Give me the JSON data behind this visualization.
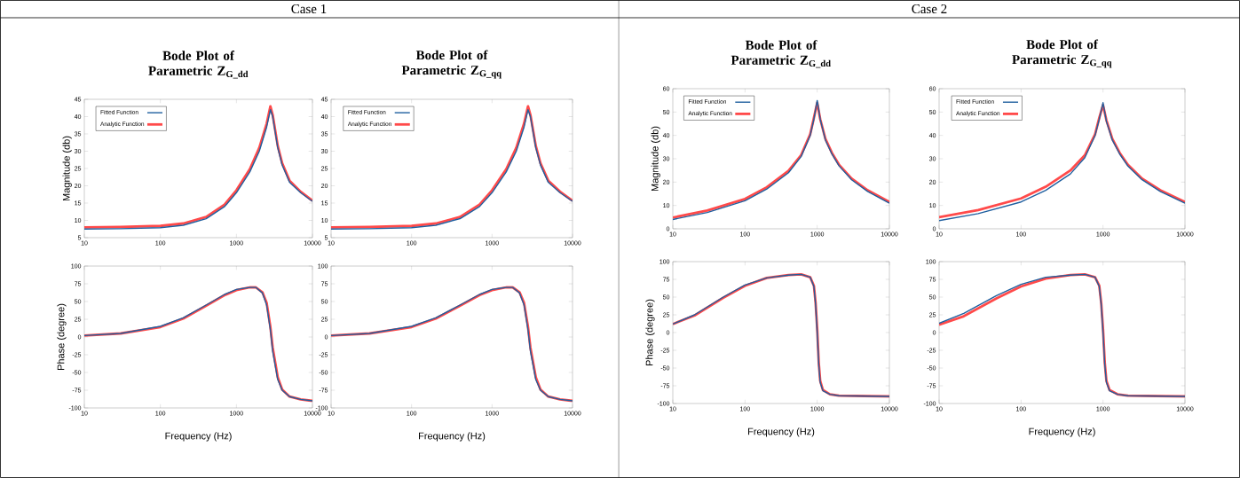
{
  "chart_data": [
    {
      "type": "line",
      "title": "Bode Plot of Parametric Z$_{G_dd}$",
      "ylabel": "Magnitude (db)",
      "annotations": [
        "Case 1"
      ],
      "log": "x",
      "legend": "top left",
      "xlim": [
        10,
        10000
      ],
      "ylim": [
        5,
        45
      ],
      "xticks": [
        10,
        100,
        1000,
        10000
      ],
      "yticks": [
        5,
        10,
        15,
        20,
        25,
        30,
        35,
        40,
        45
      ],
      "x": [
        10,
        30,
        100,
        200,
        400,
        700,
        1000,
        1500,
        2000,
        2500,
        2800,
        3000,
        3500,
        4000,
        5000,
        7000,
        10000
      ],
      "series": [
        {
          "name": "Fitted Function",
          "color": "#1f5f9f",
          "values": [
            7.5,
            7.6,
            7.9,
            8.6,
            10.5,
            14,
            18,
            24,
            30,
            37,
            42,
            40,
            31,
            26,
            21,
            18,
            15.5
          ]
        },
        {
          "name": "Analytic  Function",
          "color": "#ff4a4a",
          "values": [
            8,
            8.1,
            8.4,
            9.1,
            11,
            14.6,
            18.7,
            24.8,
            31,
            38,
            43,
            40.5,
            31.5,
            26.5,
            21.5,
            18.3,
            15.7
          ]
        }
      ]
    },
    {
      "type": "line",
      "title": "Bode Plot of Parametric  Z$_{G_qq}$",
      "log": "x",
      "legend": "top left",
      "xlim": [
        10,
        10000
      ],
      "ylim": [
        5,
        45
      ],
      "xticks": [
        10,
        100,
        1000,
        10000
      ],
      "yticks": [
        5,
        10,
        15,
        20,
        25,
        30,
        35,
        40,
        45
      ],
      "x": [
        10,
        30,
        100,
        200,
        400,
        700,
        1000,
        1500,
        2000,
        2500,
        2800,
        3000,
        3500,
        4000,
        5000,
        7000,
        10000
      ],
      "series": [
        {
          "name": "Fitted Function",
          "color": "#1f5f9f",
          "values": [
            7.5,
            7.6,
            7.9,
            8.6,
            10.5,
            14,
            18,
            24,
            30,
            37,
            42,
            40,
            31,
            26,
            21,
            18,
            15.5
          ]
        },
        {
          "name": "Analytic  Function",
          "color": "#ff4a4a",
          "values": [
            8,
            8.1,
            8.4,
            9.1,
            11,
            14.6,
            18.7,
            24.8,
            31,
            38,
            43,
            40.5,
            31.5,
            26.5,
            21.5,
            18.3,
            15.7
          ]
        }
      ]
    },
    {
      "type": "line",
      "xlabel": "Frequency (Hz)",
      "ylabel": "Phase (degree)",
      "log": "x",
      "xlim": [
        10,
        10000
      ],
      "ylim": [
        -100,
        100
      ],
      "xticks": [
        10,
        100,
        1000,
        10000
      ],
      "yticks": [
        -100,
        -75,
        -50,
        -25,
        0,
        25,
        50,
        75,
        100
      ],
      "x": [
        10,
        30,
        100,
        200,
        400,
        700,
        1000,
        1500,
        1800,
        2200,
        2500,
        2800,
        3000,
        3500,
        4000,
        5000,
        7000,
        10000
      ],
      "series": [
        {
          "color": "#1f5f9f",
          "values": [
            2,
            5,
            15,
            27,
            45,
            60,
            67,
            70,
            70,
            62,
            45,
            10,
            -20,
            -60,
            -75,
            -84,
            -88,
            -90
          ]
        },
        {
          "color": "#ff4a4a",
          "values": [
            2,
            5,
            14,
            26,
            44,
            59,
            66,
            70,
            70,
            63,
            48,
            14,
            -15,
            -57,
            -74,
            -84,
            -88,
            -90
          ]
        }
      ]
    },
    {
      "type": "line",
      "xlabel": "Frequency (Hz)",
      "log": "x",
      "xlim": [
        10,
        10000
      ],
      "ylim": [
        -100,
        100
      ],
      "xticks": [
        10,
        100,
        1000,
        10000
      ],
      "yticks": [
        -100,
        -75,
        -50,
        -25,
        0,
        25,
        50,
        75,
        100
      ],
      "x": [
        10,
        30,
        100,
        200,
        400,
        700,
        1000,
        1500,
        1800,
        2200,
        2500,
        2800,
        3000,
        3500,
        4000,
        5000,
        7000,
        10000
      ],
      "series": [
        {
          "color": "#1f5f9f",
          "values": [
            2,
            5,
            15,
            27,
            45,
            60,
            67,
            70,
            70,
            62,
            45,
            10,
            -20,
            -60,
            -75,
            -84,
            -88,
            -90
          ]
        },
        {
          "color": "#ff4a4a",
          "values": [
            2,
            5,
            14,
            26,
            44,
            59,
            66,
            70,
            70,
            63,
            48,
            14,
            -15,
            -57,
            -74,
            -84,
            -88,
            -90
          ]
        }
      ]
    },
    {
      "type": "line",
      "title": "Bode Plot of Parametric Z$_{G_dd}$",
      "ylabel": "Magnitude (db)",
      "annotations": [
        "Case 2"
      ],
      "log": "x",
      "legend": "top left",
      "xlim": [
        10,
        10000
      ],
      "ylim": [
        0,
        60
      ],
      "xticks": [
        10,
        100,
        1000,
        10000
      ],
      "yticks": [
        0,
        10,
        20,
        30,
        40,
        50,
        60
      ],
      "x": [
        10,
        30,
        100,
        200,
        400,
        600,
        800,
        900,
        1000,
        1100,
        1300,
        1600,
        2000,
        3000,
        5000,
        10000
      ],
      "series": [
        {
          "name": "Fitted Function",
          "color": "#1f5f9f",
          "values": [
            4,
            7,
            12,
            17,
            24,
            31,
            40,
            47,
            55,
            47,
            38,
            32,
            27,
            21,
            16,
            11
          ]
        },
        {
          "name": "Analytic  Function",
          "color": "#ff4a4a",
          "values": [
            4.8,
            7.8,
            12.8,
            17.8,
            24.8,
            31.6,
            40.5,
            47.5,
            54,
            47,
            38.5,
            32.5,
            27.5,
            21.5,
            16.5,
            11.5
          ]
        }
      ]
    },
    {
      "type": "line",
      "title": "Bode Plot of Parametric Z$_{G_qq}$",
      "log": "x",
      "legend": "top left",
      "xlim": [
        10,
        10000
      ],
      "ylim": [
        0,
        60
      ],
      "xticks": [
        10,
        100,
        1000,
        10000
      ],
      "yticks": [
        0,
        10,
        20,
        30,
        40,
        50,
        60
      ],
      "x": [
        10,
        30,
        100,
        200,
        400,
        600,
        800,
        900,
        1000,
        1100,
        1300,
        1600,
        2000,
        3000,
        5000,
        10000
      ],
      "series": [
        {
          "name": "Fitted Function",
          "color": "#1f5f9f",
          "values": [
            3.5,
            6.5,
            11.5,
            16.5,
            23.5,
            30.5,
            40,
            47,
            54,
            46,
            38,
            32,
            27,
            21,
            16,
            11
          ]
        },
        {
          "name": "Analytic  Function",
          "color": "#ff4a4a",
          "values": [
            5,
            8,
            13,
            18,
            25,
            31.5,
            40.5,
            47.5,
            53,
            46.5,
            38.5,
            32.5,
            27.5,
            21.5,
            16.5,
            11.5
          ]
        }
      ]
    },
    {
      "type": "line",
      "xlabel": "Frequency (Hz)",
      "ylabel": "Phase (degree)",
      "log": "x",
      "xlim": [
        10,
        10000
      ],
      "ylim": [
        -100,
        100
      ],
      "xticks": [
        10,
        100,
        1000,
        10000
      ],
      "yticks": [
        -100,
        -75,
        -50,
        -25,
        0,
        25,
        50,
        75,
        100
      ],
      "x": [
        10,
        20,
        50,
        100,
        200,
        400,
        600,
        800,
        900,
        950,
        1000,
        1050,
        1100,
        1200,
        1500,
        2000,
        10000
      ],
      "series": [
        {
          "color": "#1f5f9f",
          "values": [
            12,
            25,
            50,
            67,
            77,
            81,
            82,
            78,
            65,
            40,
            0,
            -45,
            -70,
            -82,
            -87,
            -89,
            -90
          ]
        },
        {
          "color": "#ff4a4a",
          "values": [
            12,
            24,
            49,
            66,
            77,
            81,
            82,
            78,
            66,
            42,
            5,
            -42,
            -68,
            -81,
            -87,
            -89,
            -90
          ]
        }
      ]
    },
    {
      "type": "line",
      "xlabel": "Frequency (Hz)",
      "log": "x",
      "xlim": [
        10,
        10000
      ],
      "ylim": [
        -100,
        100
      ],
      "xticks": [
        10,
        100,
        1000,
        10000
      ],
      "yticks": [
        -100,
        -75,
        -50,
        -25,
        0,
        25,
        50,
        75,
        100
      ],
      "x": [
        10,
        20,
        50,
        100,
        200,
        400,
        600,
        800,
        900,
        950,
        1000,
        1050,
        1100,
        1200,
        1500,
        2000,
        10000
      ],
      "series": [
        {
          "color": "#1f5f9f",
          "values": [
            13,
            27,
            52,
            68,
            78,
            81,
            82,
            78,
            65,
            40,
            0,
            -45,
            -70,
            -82,
            -87,
            -89,
            -90
          ]
        },
        {
          "color": "#ff4a4a",
          "values": [
            11,
            23,
            48,
            65,
            76,
            81,
            82,
            78,
            66,
            42,
            5,
            -42,
            -68,
            -81,
            -87,
            -89,
            -90
          ]
        }
      ]
    }
  ]
}
